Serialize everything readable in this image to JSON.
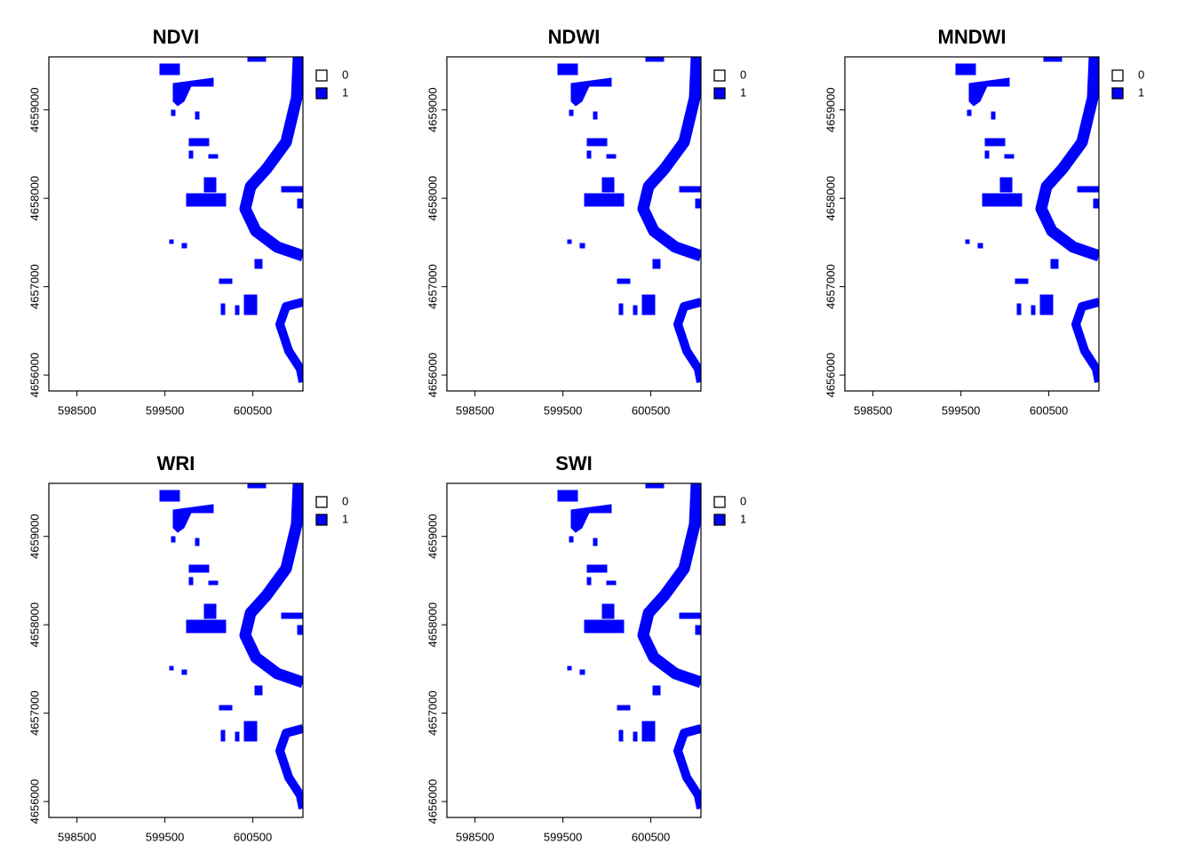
{
  "chart_data": [
    {
      "type": "raster",
      "title": "NDVI",
      "xlim": [
        598180,
        601070
      ],
      "xticks": [
        598500,
        599500,
        600500
      ],
      "ylim": [
        4655820,
        4659600
      ],
      "yticks": [
        4656000,
        4657000,
        4658000,
        4659000
      ],
      "legend": [
        {
          "label": "0",
          "color": "#ffffff"
        },
        {
          "label": "1",
          "color": "#0000ff"
        }
      ]
    },
    {
      "type": "raster",
      "title": "NDWI",
      "xlim": [
        598180,
        601070
      ],
      "xticks": [
        598500,
        599500,
        600500
      ],
      "ylim": [
        4655820,
        4659600
      ],
      "yticks": [
        4656000,
        4657000,
        4658000,
        4659000
      ],
      "legend": [
        {
          "label": "0",
          "color": "#ffffff"
        },
        {
          "label": "1",
          "color": "#0000ff"
        }
      ]
    },
    {
      "type": "raster",
      "title": "MNDWI",
      "xlim": [
        598180,
        601070
      ],
      "xticks": [
        598500,
        599500,
        600500
      ],
      "ylim": [
        4655820,
        4659600
      ],
      "yticks": [
        4656000,
        4657000,
        4658000,
        4659000
      ],
      "legend": [
        {
          "label": "0",
          "color": "#ffffff"
        },
        {
          "label": "1",
          "color": "#0000ff"
        }
      ]
    },
    {
      "type": "raster",
      "title": "WRI",
      "xlim": [
        598180,
        601070
      ],
      "xticks": [
        598500,
        599500,
        600500
      ],
      "ylim": [
        4655820,
        4659600
      ],
      "yticks": [
        4656000,
        4657000,
        4658000,
        4659000
      ],
      "legend": [
        {
          "label": "0",
          "color": "#ffffff"
        },
        {
          "label": "1",
          "color": "#0000ff"
        }
      ]
    },
    {
      "type": "raster",
      "title": "SWI",
      "xlim": [
        598180,
        601070
      ],
      "xticks": [
        598500,
        599500,
        600500
      ],
      "ylim": [
        4655820,
        4659600
      ],
      "yticks": [
        4656000,
        4657000,
        4658000,
        4659000
      ],
      "legend": [
        {
          "label": "0",
          "color": "#ffffff"
        },
        {
          "label": "1",
          "color": "#0000ff"
        }
      ]
    }
  ]
}
